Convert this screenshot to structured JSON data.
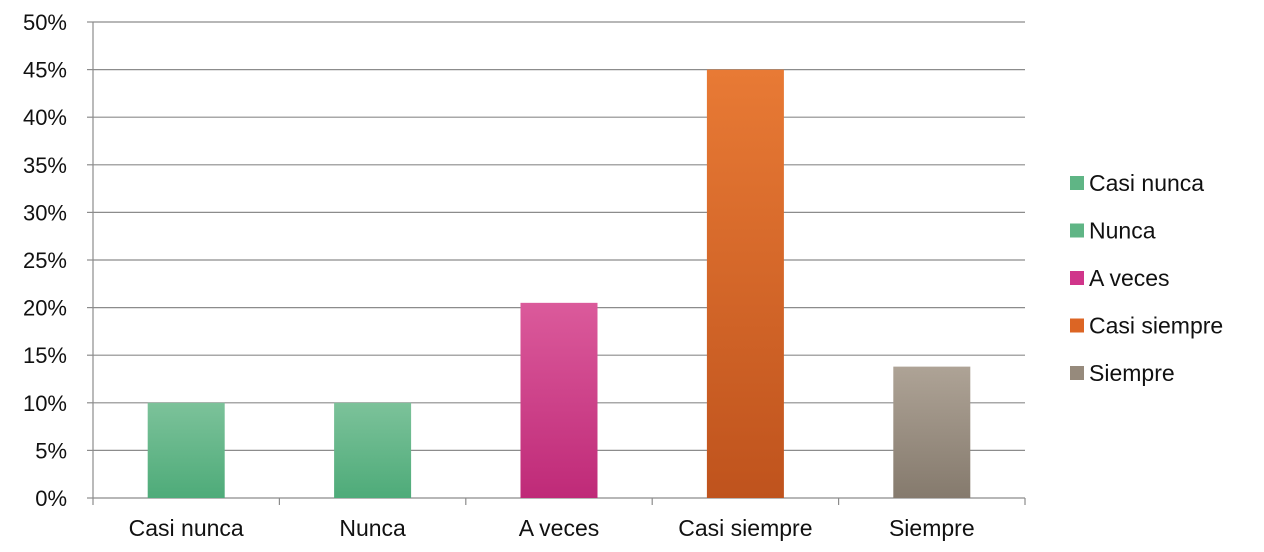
{
  "chart_data": {
    "type": "bar",
    "title": "",
    "xlabel": "",
    "ylabel": "",
    "categories": [
      "Casi nunca",
      "Nunca",
      "A veces",
      "Casi siempre",
      "Siempre"
    ],
    "values": [
      10,
      10,
      20.5,
      45,
      13.8
    ],
    "ylim": [
      0,
      50
    ],
    "ytick_step": 5,
    "ytick_format": "percent",
    "grid": true,
    "legend": {
      "placement": "right",
      "entries": [
        "Casi nunca",
        "Nunca",
        "A veces",
        "Casi siempre",
        "Siempre"
      ]
    },
    "colors": {
      "Casi nunca": {
        "top": "#7cc29a",
        "bottom": "#4eab79",
        "legend": "#5fb585"
      },
      "Nunca": {
        "top": "#7cc29a",
        "bottom": "#4eab79",
        "legend": "#5fb585"
      },
      "A veces": {
        "top": "#db5a9b",
        "bottom": "#bf2a78",
        "legend": "#d0358a"
      },
      "Casi siempre": {
        "top": "#e87a35",
        "bottom": "#bf531d",
        "legend": "#dc6524"
      },
      "Siempre": {
        "top": "#aea396",
        "bottom": "#857a6d",
        "legend": "#968a7c"
      }
    },
    "gridline_color": "#8c8c8c"
  }
}
